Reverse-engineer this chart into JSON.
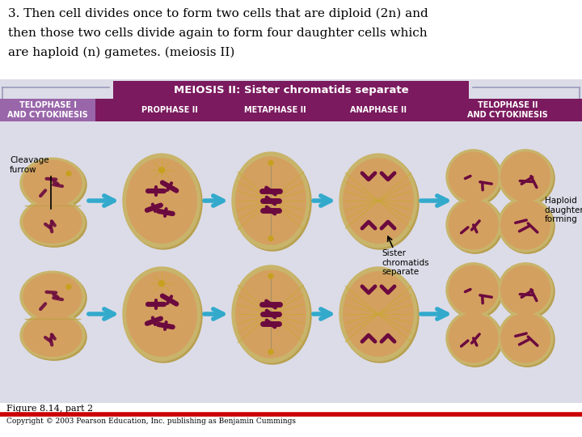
{
  "title_line1": "3. Then cell divides once to form two cells that are diploid (2n) and",
  "title_line2": "then those two cells divide again to form four daughter cells which",
  "title_line3": "are haploid (n) gametes. (meiosis II)",
  "bg_color": "#ffffff",
  "panel_bg": "#dcdce8",
  "header_bar_color": "#7b1a5e",
  "header_bar_text": "MEIOSIS II: Sister chromatids separate",
  "header_bar_text_color": "#ffffff",
  "phase_bar_color": "#7b1a5e",
  "phase_labels": [
    "TELOPHASE I\nAND CYTOKINESIS",
    "PROPHASE II",
    "METAPHASE II",
    "ANAPHASE II",
    "TELOPHASE II\nAND CYTOKINESIS"
  ],
  "phase_label_color": "#ffffff",
  "telophase1_label_bg": "#9966aa",
  "arrow_color": "#33aacc",
  "cleavage_furrow_label": "Cleavage\nfurrow",
  "sister_chromatids_label": "Sister\nchromatids\nseparate",
  "haploid_label": "Haploid\ndaughter cells\nforming",
  "figure_caption": "Figure 8.14, part 2",
  "copyright": "Copyright © 2003 Pearson Education, Inc. publishing as Benjamin Cummings",
  "separator_color": "#cc0000",
  "cell_outer": "#c8b46a",
  "cell_inner": "#d4a060",
  "cell_shadow": "#b8a050",
  "chromosome_dark": "#6b0a3e",
  "chromosome_mid": "#8b1a4e",
  "spindle_color": "#c8a830",
  "title_fontsize": 11,
  "phase_fontsize": 7,
  "caption_fontsize": 8,
  "copyright_fontsize": 6.5
}
